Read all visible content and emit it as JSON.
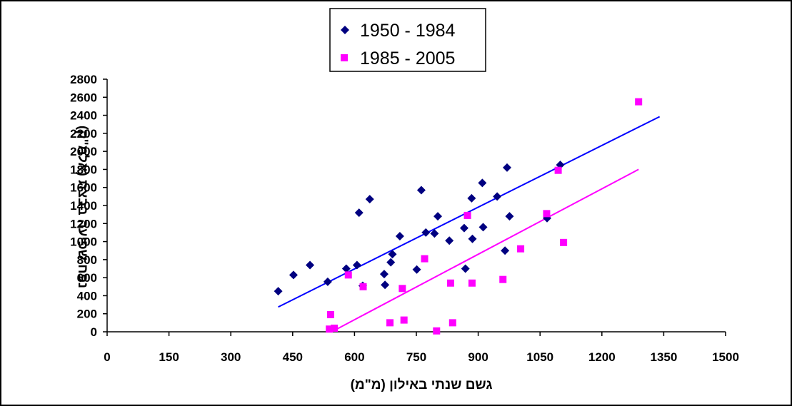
{
  "chart_data": {
    "type": "scatter",
    "xlabel": "גשם שנתי באילון (מ\"מ)",
    "ylabel": "נפח שפיעה בבצת (אלמ\"ק)",
    "xlim": [
      0,
      1500
    ],
    "ylim": [
      0,
      2800
    ],
    "x_ticks": [
      "0",
      "150",
      "300",
      "450",
      "600",
      "750",
      "900",
      "1050",
      "1200",
      "1350",
      "1500"
    ],
    "y_ticks": [
      "0",
      "200",
      "400",
      "600",
      "800",
      "1000",
      "1200",
      "1400",
      "1600",
      "1800",
      "2000",
      "2200",
      "2400",
      "2600",
      "2800"
    ],
    "grid": false,
    "legend_position": "top-center",
    "series": [
      {
        "name": "1950 - 1984",
        "marker": "diamond",
        "color": "#000080",
        "points": [
          [
            415,
            450
          ],
          [
            452,
            630
          ],
          [
            492,
            740
          ],
          [
            535,
            555
          ],
          [
            580,
            700
          ],
          [
            606,
            740
          ],
          [
            611,
            1320
          ],
          [
            620,
            510
          ],
          [
            637,
            1470
          ],
          [
            672,
            640
          ],
          [
            674,
            520
          ],
          [
            688,
            770
          ],
          [
            692,
            860
          ],
          [
            710,
            1060
          ],
          [
            751,
            690
          ],
          [
            762,
            1570
          ],
          [
            773,
            1100
          ],
          [
            794,
            1090
          ],
          [
            802,
            1280
          ],
          [
            830,
            1010
          ],
          [
            866,
            1150
          ],
          [
            869,
            700
          ],
          [
            884,
            1480
          ],
          [
            886,
            1030
          ],
          [
            910,
            1650
          ],
          [
            912,
            1160
          ],
          [
            946,
            1500
          ],
          [
            965,
            900
          ],
          [
            970,
            1820
          ],
          [
            976,
            1280
          ],
          [
            1067,
            1260
          ],
          [
            1099,
            1850
          ]
        ]
      },
      {
        "name": "1985 - 2005",
        "marker": "square",
        "color": "#ff00ff",
        "points": [
          [
            539,
            30
          ],
          [
            542,
            190
          ],
          [
            551,
            40
          ],
          [
            585,
            630
          ],
          [
            621,
            500
          ],
          [
            686,
            100
          ],
          [
            716,
            480
          ],
          [
            720,
            130
          ],
          [
            770,
            810
          ],
          [
            799,
            10
          ],
          [
            833,
            540
          ],
          [
            838,
            100
          ],
          [
            874,
            1290
          ],
          [
            885,
            540
          ],
          [
            960,
            580
          ],
          [
            1003,
            920
          ],
          [
            1066,
            1310
          ],
          [
            1094,
            1790
          ],
          [
            1107,
            990
          ],
          [
            1289,
            2550
          ]
        ]
      }
    ],
    "trendlines": [
      {
        "series": "1950 - 1984",
        "color": "#0000ff",
        "x": [
          415,
          1340
        ],
        "y": [
          275,
          2385
        ]
      },
      {
        "series": "1985 - 2005",
        "color": "#ff00ff",
        "x": [
          555,
          1289
        ],
        "y": [
          25,
          1800
        ]
      }
    ]
  }
}
